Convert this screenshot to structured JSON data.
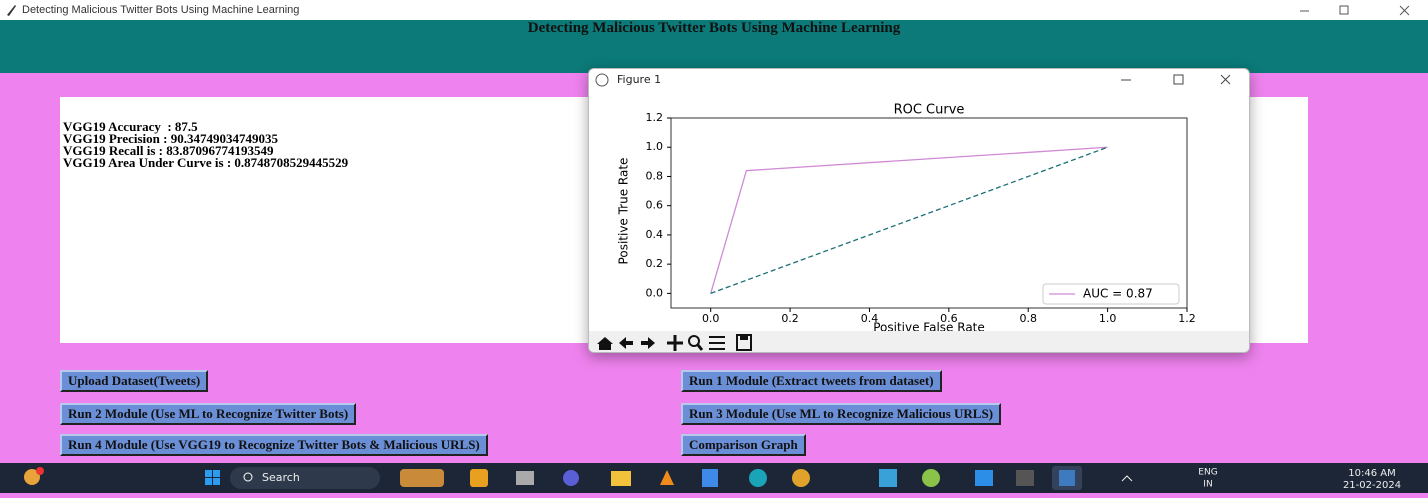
{
  "window": {
    "title": "Detecting Malicious Twitter Bots Using Machine Learning"
  },
  "header": {
    "title": "Detecting Malicious Twitter Bots Using Machine Learning"
  },
  "results": [
    "VGG19 Accuracy  : 87.5",
    "VGG19 Precision : 90.34749034749035",
    "VGG19 Recall is : 83.87096774193549",
    "VGG19 Area Under Curve is : 0.8748708529445529"
  ],
  "buttons": [
    "Upload Dataset(Tweets)",
    "Run 1 Module (Extract tweets from dataset)",
    "Run 2 Module (Use ML to Recognize Twitter Bots)",
    "Run 3 Module (Use ML to Recognize Malicious URLS)",
    "Run 4 Module (Use VGG19 to Recognize Twitter Bots & Malicious URLS)",
    "Comparison Graph"
  ],
  "figure": {
    "title": "Figure 1"
  },
  "chart_data": {
    "type": "line",
    "title": "ROC Curve",
    "x_label": "Positive False Rate",
    "y_label": "Positive True Rate",
    "series": [
      {
        "name": "AUC = 0.87",
        "color": "#d08ad6",
        "x": [
          0,
          0.09,
          1
        ],
        "values": [
          0,
          0.84,
          1
        ]
      },
      {
        "color": "#1b6f76",
        "dashed": true,
        "x": [
          0,
          1
        ],
        "values": [
          0,
          1
        ]
      }
    ],
    "xlim": [
      -0.1,
      1.2
    ],
    "ylim": [
      -0.1,
      1.2
    ],
    "xticks": [
      {
        "value": 0,
        "label": "0.0"
      },
      0.2,
      0.4,
      0.6,
      0.8,
      {
        "value": 1,
        "label": "1.0"
      },
      1.2
    ],
    "yticks": [
      {
        "value": 0,
        "label": "0.0"
      },
      0.2,
      0.4,
      0.6,
      0.8,
      {
        "value": 1,
        "label": "1.0"
      },
      1.2
    ],
    "legend": "lower right",
    "grid": false
  },
  "taskbar": {
    "search": "Search",
    "language": "ENG",
    "region": "IN",
    "time": "10:46 AM",
    "date": "21-02-2024"
  }
}
